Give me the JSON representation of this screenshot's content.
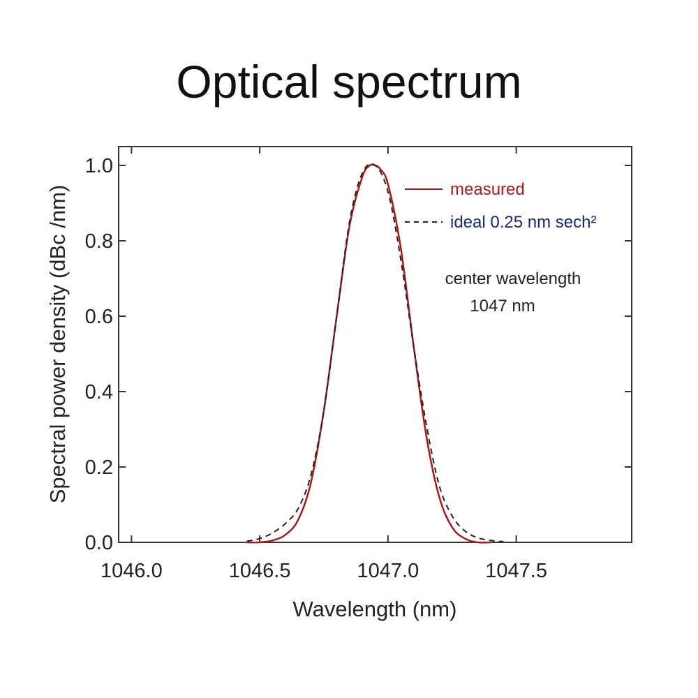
{
  "chart_data": {
    "type": "line",
    "title": "Optical spectrum",
    "xlabel": "Wavelength (nm)",
    "ylabel": "Spectral power density (dBc /nm)",
    "xlim": [
      1045.95,
      1047.95
    ],
    "ylim": [
      0.0,
      1.05
    ],
    "xticks": [
      "1046.0",
      "1046.5",
      "1047.0",
      "1047.5"
    ],
    "xtick_values": [
      1046.0,
      1046.5,
      1047.0,
      1047.5
    ],
    "yticks": [
      "0.0",
      "0.2",
      "0.4",
      "0.6",
      "0.8",
      "1.0"
    ],
    "ytick_values": [
      0.0,
      0.2,
      0.4,
      0.6,
      0.8,
      1.0
    ],
    "grid": false,
    "legend_position": "top-right",
    "series": [
      {
        "name": "measured",
        "color": "#a11d1d",
        "style": "solid",
        "x": [
          1046.45,
          1046.5,
          1046.55,
          1046.6,
          1046.65,
          1046.7,
          1046.75,
          1046.8,
          1046.85,
          1046.9,
          1046.93,
          1046.95,
          1046.97,
          1047.0,
          1047.05,
          1047.1,
          1047.15,
          1047.2,
          1047.25,
          1047.3,
          1047.35,
          1047.4
        ],
        "y": [
          0.0,
          0.0,
          0.005,
          0.02,
          0.06,
          0.16,
          0.35,
          0.6,
          0.84,
          0.97,
          1.0,
          1.0,
          0.99,
          0.95,
          0.78,
          0.52,
          0.28,
          0.12,
          0.04,
          0.01,
          0.0,
          0.0
        ]
      },
      {
        "name": "ideal 0.25 nm sech²",
        "color": "#222222",
        "style": "dashed",
        "x": [
          1046.45,
          1046.5,
          1046.55,
          1046.6,
          1046.65,
          1046.7,
          1046.75,
          1046.8,
          1046.85,
          1046.9,
          1046.95,
          1047.0,
          1047.05,
          1047.1,
          1047.15,
          1047.2,
          1047.25,
          1047.3,
          1047.35,
          1047.4,
          1047.45
        ],
        "y": [
          0.003,
          0.01,
          0.025,
          0.05,
          0.09,
          0.18,
          0.35,
          0.6,
          0.85,
          0.98,
          1.0,
          0.93,
          0.75,
          0.52,
          0.31,
          0.15,
          0.07,
          0.03,
          0.012,
          0.005,
          0.002
        ]
      }
    ],
    "legend": [
      {
        "label": "measured",
        "color": "#a11d1d",
        "style": "solid"
      },
      {
        "label": "ideal 0.25 nm sech²",
        "color": "#222222",
        "style": "dashed"
      }
    ],
    "annotations": [
      "center wavelength",
      "1047 nm"
    ]
  }
}
